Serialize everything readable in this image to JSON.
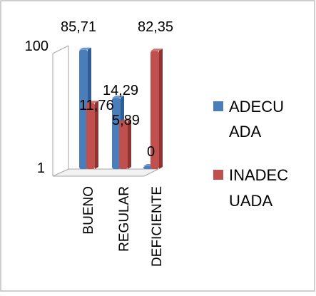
{
  "chart_data": {
    "type": "bar",
    "style": "3d-clustered-column",
    "scale": "log",
    "ylim": [
      1,
      100
    ],
    "yticks": [
      "1",
      "100"
    ],
    "categories": [
      "BUENO",
      "REGULAR",
      "DEFICIENTE"
    ],
    "series": [
      {
        "name_lines": [
          "ADECU",
          "ADA"
        ],
        "color": "#4a7ebb",
        "values": [
          85.71,
          14.29,
          0
        ],
        "labels": [
          "85,71",
          "14,29",
          "0"
        ]
      },
      {
        "name_lines": [
          "INADEC",
          "UADA"
        ],
        "color": "#c0504d",
        "values": [
          11.76,
          5.89,
          82.35
        ],
        "labels": [
          "11,76",
          "5,89",
          "82,35"
        ]
      }
    ],
    "legend": "right",
    "grid": false
  },
  "colors": {
    "frame": "#bfbfbf",
    "axis": "#a6a6a6",
    "floor": "#d9d9d9",
    "series1_side": "#2f5d96",
    "series2_side": "#8f3330"
  }
}
